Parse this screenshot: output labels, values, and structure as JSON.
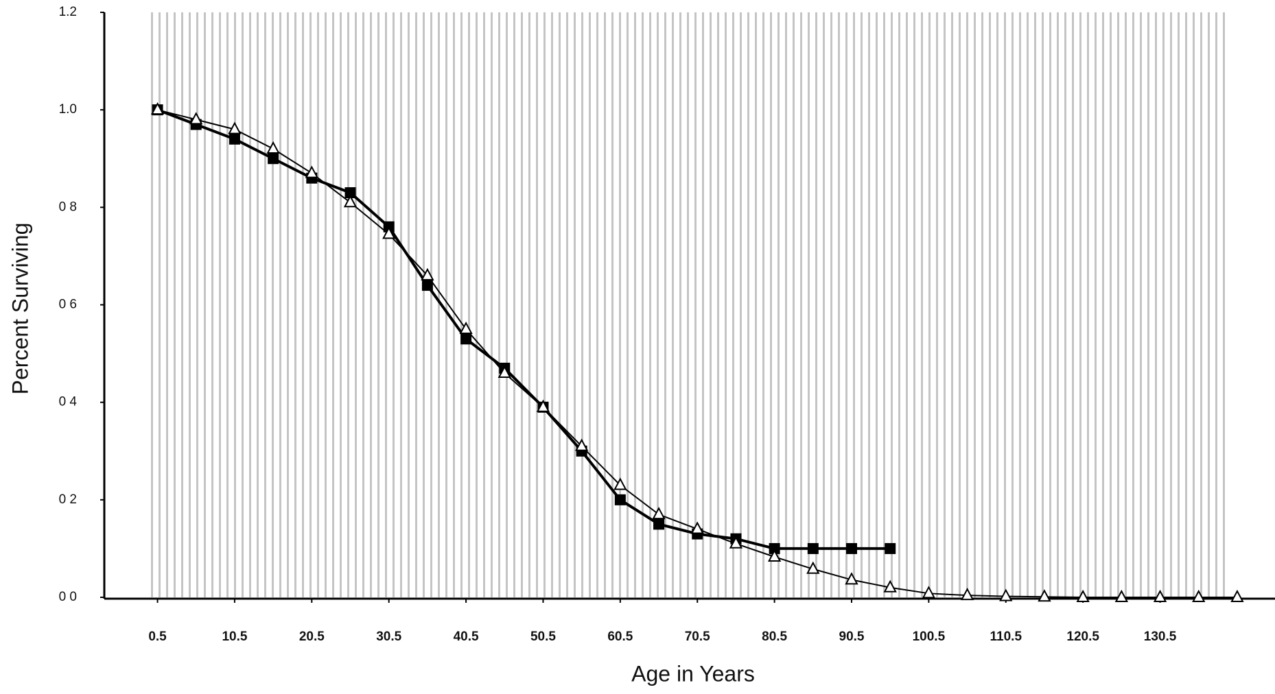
{
  "chart_data": {
    "type": "line",
    "x_label": "Age in Years",
    "y_label": "Percent Surviving",
    "x": [
      0.5,
      5.5,
      10.5,
      15.5,
      20.5,
      25.5,
      30.5,
      35.5,
      40.5,
      45.5,
      50.5,
      55.5,
      60.5,
      65.5,
      70.5,
      75.5,
      80.5,
      85.5,
      90.5,
      95.5,
      100.5,
      105.5,
      110.5,
      115.5,
      120.5,
      125.5,
      130.5,
      135.5,
      140.5
    ],
    "series": [
      {
        "color": "#000000",
        "marker": "square",
        "values": [
          1.0,
          0.97,
          0.94,
          0.9,
          0.86,
          0.83,
          0.76,
          0.64,
          0.53,
          0.47,
          0.39,
          0.3,
          0.2,
          0.15,
          0.13,
          0.12,
          0.1,
          0.1,
          0.1,
          0.1,
          null,
          null,
          null,
          null,
          null,
          null,
          null,
          null,
          null
        ]
      },
      {
        "color": "#000000",
        "marker": "triangle",
        "values": [
          1.0,
          0.98,
          0.96,
          0.92,
          0.87,
          0.81,
          0.745,
          0.66,
          0.55,
          0.46,
          0.39,
          0.31,
          0.23,
          0.17,
          0.14,
          0.11,
          0.083,
          0.058,
          0.036,
          0.02,
          0.008,
          0.004,
          0.002,
          0.001,
          0,
          0,
          0,
          0,
          0
        ]
      }
    ],
    "xlim": [
      -6.4,
      145.4
    ],
    "xticks": [
      0.5,
      10.5,
      20.5,
      30.5,
      40.5,
      50.5,
      60.5,
      70.5,
      80.5,
      90.5,
      100.5,
      110.5,
      120.5,
      130.5
    ],
    "ylim": [
      0,
      1.2
    ],
    "yticks": [
      {
        "value": 0,
        "label": "0 0"
      },
      {
        "value": 0.2,
        "label": "0 2"
      },
      {
        "value": 0.4,
        "label": "0 4"
      },
      {
        "value": 0.6,
        "label": "0 6"
      },
      {
        "value": 0.8,
        "label": "0 8"
      },
      {
        "value": 1,
        "label": "1.0"
      },
      1.2
    ]
  }
}
